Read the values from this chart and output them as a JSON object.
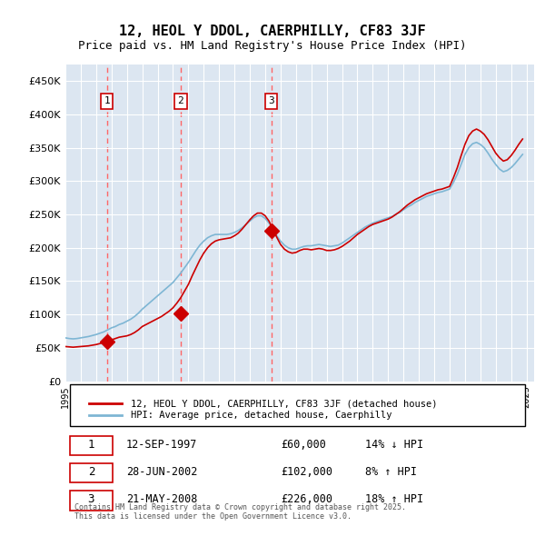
{
  "title": "12, HEOL Y DDOL, CAERPHILLY, CF83 3JF",
  "subtitle": "Price paid vs. HM Land Registry's House Price Index (HPI)",
  "legend_line1": "12, HEOL Y DDOL, CAERPHILLY, CF83 3JF (detached house)",
  "legend_line2": "HPI: Average price, detached house, Caerphilly",
  "footer": "Contains HM Land Registry data © Crown copyright and database right 2025.\nThis data is licensed under the Open Government Licence v3.0.",
  "transactions": [
    {
      "num": 1,
      "date": "12-SEP-1997",
      "price": 60000,
      "hpi_diff": "14% ↓ HPI"
    },
    {
      "num": 2,
      "date": "28-JUN-2002",
      "price": 102000,
      "hpi_diff": "8% ↑ HPI"
    },
    {
      "num": 3,
      "date": "21-MAY-2008",
      "price": 226000,
      "hpi_diff": "18% ↑ HPI"
    }
  ],
  "transaction_years": [
    1997.7,
    2002.5,
    2008.4
  ],
  "ylim": [
    0,
    475000
  ],
  "yticks": [
    0,
    50000,
    100000,
    150000,
    200000,
    250000,
    300000,
    350000,
    400000,
    450000
  ],
  "ytick_labels": [
    "£0",
    "£50K",
    "£100K",
    "£150K",
    "£200K",
    "£250K",
    "£300K",
    "£350K",
    "£400K",
    "£450K"
  ],
  "background_color": "#dce6f1",
  "plot_bg_color": "#dce6f1",
  "grid_color": "#ffffff",
  "red_line_color": "#cc0000",
  "blue_line_color": "#7eb6d4",
  "marker_color": "#cc0000",
  "vline_color": "#ff6666",
  "box_edge_color": "#cc0000",
  "sale_marker_size": 8,
  "red_hpi_series": {
    "years": [
      1995.0,
      1995.25,
      1995.5,
      1995.75,
      1996.0,
      1996.25,
      1996.5,
      1996.75,
      1997.0,
      1997.25,
      1997.5,
      1997.75,
      1998.0,
      1998.25,
      1998.5,
      1998.75,
      1999.0,
      1999.25,
      1999.5,
      1999.75,
      2000.0,
      2000.25,
      2000.5,
      2000.75,
      2001.0,
      2001.25,
      2001.5,
      2001.75,
      2002.0,
      2002.25,
      2002.5,
      2002.75,
      2003.0,
      2003.25,
      2003.5,
      2003.75,
      2004.0,
      2004.25,
      2004.5,
      2004.75,
      2005.0,
      2005.25,
      2005.5,
      2005.75,
      2006.0,
      2006.25,
      2006.5,
      2006.75,
      2007.0,
      2007.25,
      2007.5,
      2007.75,
      2008.0,
      2008.25,
      2008.5,
      2008.75,
      2009.0,
      2009.25,
      2009.5,
      2009.75,
      2010.0,
      2010.25,
      2010.5,
      2010.75,
      2011.0,
      2011.25,
      2011.5,
      2011.75,
      2012.0,
      2012.25,
      2012.5,
      2012.75,
      2013.0,
      2013.25,
      2013.5,
      2013.75,
      2014.0,
      2014.25,
      2014.5,
      2014.75,
      2015.0,
      2015.25,
      2015.5,
      2015.75,
      2016.0,
      2016.25,
      2016.5,
      2016.75,
      2017.0,
      2017.25,
      2017.5,
      2017.75,
      2018.0,
      2018.25,
      2018.5,
      2018.75,
      2019.0,
      2019.25,
      2019.5,
      2019.75,
      2020.0,
      2020.25,
      2020.5,
      2020.75,
      2021.0,
      2021.25,
      2021.5,
      2021.75,
      2022.0,
      2022.25,
      2022.5,
      2022.75,
      2023.0,
      2023.25,
      2023.5,
      2023.75,
      2024.0,
      2024.25,
      2024.5,
      2024.75
    ],
    "values": [
      52000,
      51500,
      51000,
      51500,
      52000,
      52500,
      53000,
      54000,
      55000,
      56500,
      58000,
      60000,
      62000,
      64000,
      66000,
      67000,
      68000,
      70000,
      73000,
      77000,
      82000,
      85000,
      88000,
      91000,
      94000,
      97000,
      101000,
      105000,
      110000,
      117000,
      125000,
      135000,
      145000,
      158000,
      170000,
      182000,
      192000,
      200000,
      206000,
      210000,
      212000,
      213000,
      214000,
      215000,
      218000,
      222000,
      228000,
      235000,
      242000,
      248000,
      252000,
      252000,
      248000,
      240000,
      228000,
      216000,
      205000,
      198000,
      194000,
      192000,
      193000,
      196000,
      198000,
      198000,
      197000,
      198000,
      199000,
      198000,
      196000,
      196000,
      197000,
      199000,
      202000,
      206000,
      210000,
      215000,
      220000,
      224000,
      228000,
      232000,
      235000,
      237000,
      239000,
      241000,
      243000,
      246000,
      250000,
      254000,
      259000,
      264000,
      268000,
      272000,
      275000,
      278000,
      281000,
      283000,
      285000,
      287000,
      288000,
      290000,
      292000,
      305000,
      320000,
      338000,
      355000,
      368000,
      375000,
      378000,
      375000,
      370000,
      362000,
      352000,
      342000,
      335000,
      330000,
      332000,
      338000,
      346000,
      355000,
      363000
    ]
  },
  "blue_hpi_series": {
    "years": [
      1995.0,
      1995.25,
      1995.5,
      1995.75,
      1996.0,
      1996.25,
      1996.5,
      1996.75,
      1997.0,
      1997.25,
      1997.5,
      1997.75,
      1998.0,
      1998.25,
      1998.5,
      1998.75,
      1999.0,
      1999.25,
      1999.5,
      1999.75,
      2000.0,
      2000.25,
      2000.5,
      2000.75,
      2001.0,
      2001.25,
      2001.5,
      2001.75,
      2002.0,
      2002.25,
      2002.5,
      2002.75,
      2003.0,
      2003.25,
      2003.5,
      2003.75,
      2004.0,
      2004.25,
      2004.5,
      2004.75,
      2005.0,
      2005.25,
      2005.5,
      2005.75,
      2006.0,
      2006.25,
      2006.5,
      2006.75,
      2007.0,
      2007.25,
      2007.5,
      2007.75,
      2008.0,
      2008.25,
      2008.5,
      2008.75,
      2009.0,
      2009.25,
      2009.5,
      2009.75,
      2010.0,
      2010.25,
      2010.5,
      2010.75,
      2011.0,
      2011.25,
      2011.5,
      2011.75,
      2012.0,
      2012.25,
      2012.5,
      2012.75,
      2013.0,
      2013.25,
      2013.5,
      2013.75,
      2014.0,
      2014.25,
      2014.5,
      2014.75,
      2015.0,
      2015.25,
      2015.5,
      2015.75,
      2016.0,
      2016.25,
      2016.5,
      2016.75,
      2017.0,
      2017.25,
      2017.5,
      2017.75,
      2018.0,
      2018.25,
      2018.5,
      2018.75,
      2019.0,
      2019.25,
      2019.5,
      2019.75,
      2020.0,
      2020.25,
      2020.5,
      2020.75,
      2021.0,
      2021.25,
      2021.5,
      2021.75,
      2022.0,
      2022.25,
      2022.5,
      2022.75,
      2023.0,
      2023.25,
      2023.5,
      2023.75,
      2024.0,
      2024.25,
      2024.5,
      2024.75
    ],
    "values": [
      65000,
      64000,
      63500,
      64000,
      65000,
      66000,
      67000,
      68500,
      70000,
      72000,
      74000,
      77000,
      80000,
      82000,
      85000,
      87000,
      90000,
      93000,
      97000,
      102000,
      108000,
      113000,
      118000,
      123000,
      128000,
      133000,
      138000,
      143000,
      148000,
      155000,
      162000,
      170000,
      178000,
      187000,
      196000,
      204000,
      210000,
      215000,
      218000,
      220000,
      220000,
      220000,
      220000,
      221000,
      223000,
      226000,
      230000,
      235000,
      240000,
      245000,
      248000,
      248000,
      244000,
      237000,
      228000,
      218000,
      210000,
      204000,
      200000,
      198000,
      198000,
      200000,
      202000,
      203000,
      203000,
      204000,
      205000,
      204000,
      203000,
      202000,
      203000,
      204000,
      207000,
      211000,
      215000,
      219000,
      223000,
      227000,
      231000,
      234000,
      237000,
      239000,
      241000,
      243000,
      245000,
      247000,
      250000,
      253000,
      257000,
      261000,
      264000,
      268000,
      271000,
      274000,
      277000,
      279000,
      281000,
      283000,
      284000,
      286000,
      288000,
      298000,
      310000,
      325000,
      340000,
      350000,
      356000,
      358000,
      355000,
      350000,
      342000,
      333000,
      325000,
      318000,
      314000,
      316000,
      320000,
      326000,
      333000,
      340000
    ]
  }
}
